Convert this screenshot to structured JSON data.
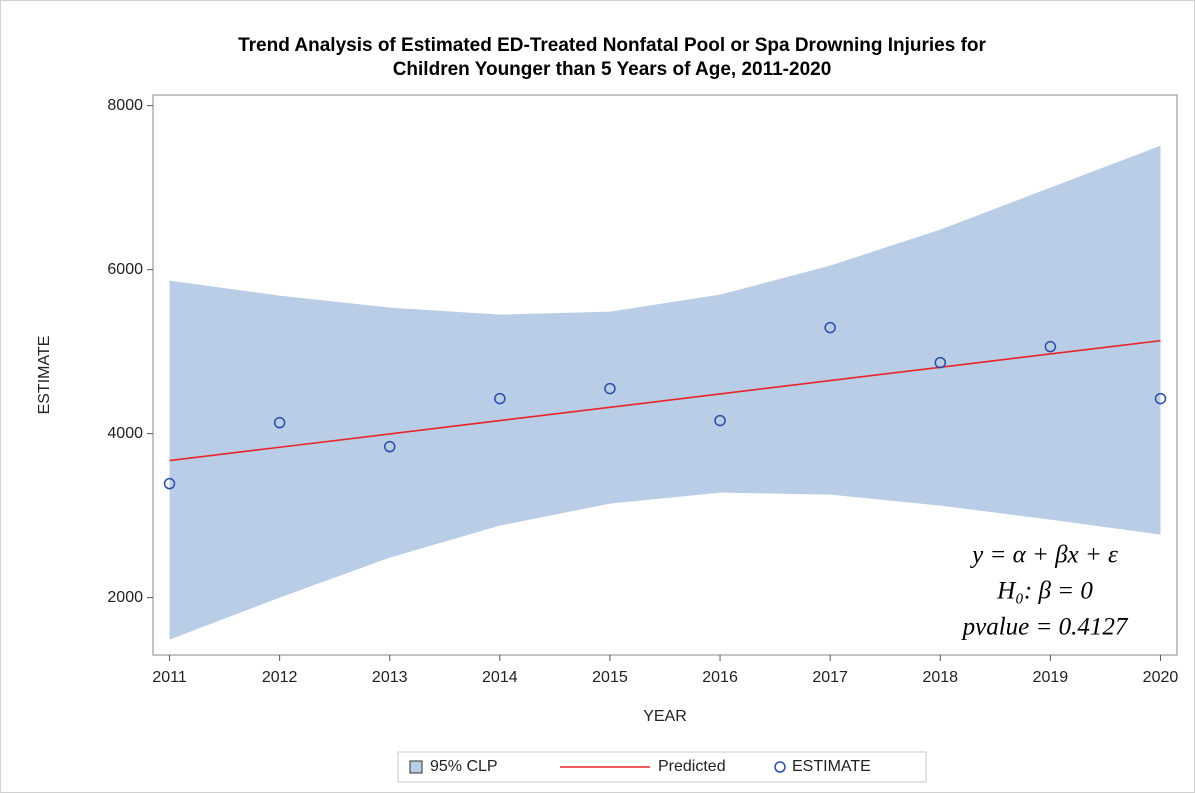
{
  "chart_data": {
    "type": "line",
    "title": [
      "Trend Analysis of Estimated ED-Treated Nonfatal Pool or Spa Drowning Injuries for",
      "Children Younger than 5 Years of Age, 2011-2020"
    ],
    "x_label": "YEAR",
    "y_label": "ESTIMATE",
    "x": [
      2011,
      2012,
      2013,
      2014,
      2015,
      2016,
      2017,
      2018,
      2019,
      2020
    ],
    "xlim": [
      2010.85,
      2020.15
    ],
    "xticks": [
      2011,
      2012,
      2013,
      2014,
      2015,
      2016,
      2017,
      2018,
      2019,
      2020
    ],
    "ylim": [
      1300,
      8130
    ],
    "yticks": [
      2000,
      4000,
      6000,
      8000
    ],
    "band": {
      "name": "95% CLP",
      "color": "#b9cde6",
      "upper": [
        5866,
        5683,
        5537,
        5451,
        5488,
        5695,
        6049,
        6488,
        7000,
        7512
      ],
      "lower": [
        1488,
        2000,
        2488,
        2878,
        3146,
        3280,
        3256,
        3122,
        2951,
        2768
      ]
    },
    "series": [
      {
        "name": "Predicted",
        "color": "#e8262a",
        "style": "line",
        "values": [
          3671,
          3834,
          3996,
          4159,
          4321,
          4484,
          4647,
          4809,
          4972,
          5134
        ]
      },
      {
        "name": "ESTIMATE",
        "color": "#2a4ea8",
        "style": "marker",
        "values": [
          3390,
          4134,
          3841,
          4427,
          4549,
          4159,
          5293,
          4866,
          5061,
          4427
        ]
      }
    ],
    "annotations": [
      "y = α + βx + ε",
      "H₀: β = 0",
      "pvalue = 0.4127"
    ]
  }
}
